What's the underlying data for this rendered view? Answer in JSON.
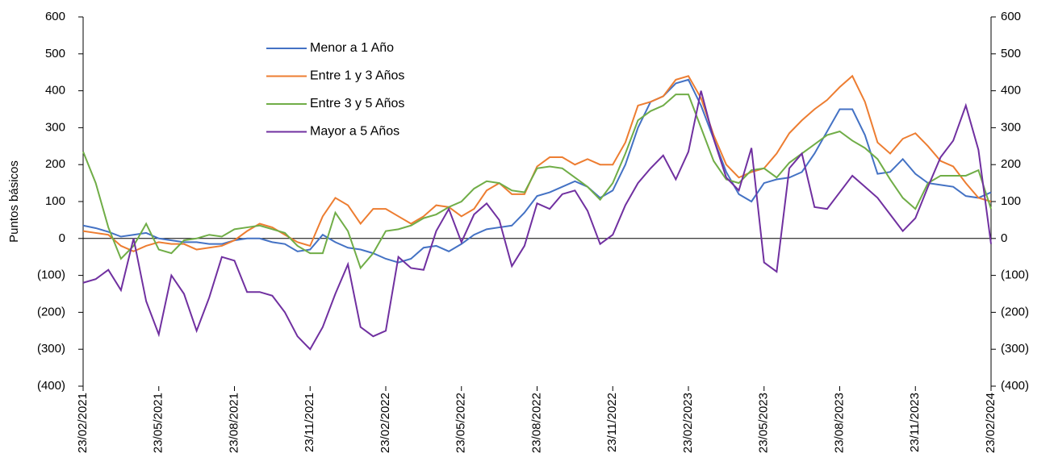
{
  "chart_data": {
    "type": "line",
    "y_label": "Puntos básicos",
    "categories": [
      "23/02/2021",
      null,
      null,
      null,
      null,
      null,
      "23/05/2021",
      null,
      null,
      null,
      null,
      null,
      "23/08/2021",
      null,
      null,
      null,
      null,
      null,
      "23/11/2021",
      null,
      null,
      null,
      null,
      null,
      "23/02/2022",
      null,
      null,
      null,
      null,
      null,
      "23/05/2022",
      null,
      null,
      null,
      null,
      null,
      "23/08/2022",
      null,
      null,
      null,
      null,
      null,
      "23/11/2022",
      null,
      null,
      null,
      null,
      null,
      "23/02/2023",
      null,
      null,
      null,
      null,
      null,
      "23/05/2023",
      null,
      null,
      null,
      null,
      null,
      "23/08/2023",
      null,
      null,
      null,
      null,
      null,
      "23/11/2023",
      null,
      null,
      null,
      null,
      null,
      "23/02/2024"
    ],
    "series": [
      {
        "name": "Menor a 1 Año",
        "color": "#4472c4",
        "values": [
          35,
          28,
          18,
          5,
          10,
          15,
          0,
          -5,
          -10,
          -10,
          -15,
          -15,
          -5,
          0,
          0,
          -10,
          -15,
          -35,
          -30,
          10,
          -10,
          -25,
          -30,
          -40,
          -55,
          -65,
          -55,
          -25,
          -20,
          -35,
          -15,
          10,
          25,
          30,
          35,
          70,
          115,
          125,
          140,
          155,
          140,
          110,
          130,
          200,
          300,
          370,
          385,
          420,
          430,
          360,
          270,
          180,
          120,
          100,
          150,
          160,
          165,
          180,
          230,
          290,
          350,
          350,
          280,
          175,
          180,
          215,
          175,
          150,
          145,
          140,
          115,
          110,
          125
        ]
      },
      {
        "name": "Entre 1 y 3 Años",
        "color": "#ed7d31",
        "values": [
          20,
          15,
          10,
          -20,
          -35,
          -20,
          -10,
          -15,
          -15,
          -30,
          -25,
          -20,
          -5,
          20,
          40,
          30,
          10,
          -10,
          -20,
          60,
          110,
          90,
          40,
          80,
          80,
          60,
          40,
          60,
          90,
          85,
          60,
          80,
          130,
          150,
          120,
          120,
          195,
          220,
          220,
          200,
          215,
          200,
          200,
          260,
          360,
          370,
          385,
          430,
          440,
          380,
          280,
          200,
          165,
          180,
          190,
          230,
          285,
          320,
          350,
          375,
          410,
          440,
          370,
          260,
          230,
          270,
          285,
          250,
          210,
          195,
          150,
          110,
          100
        ]
      },
      {
        "name": "Entre 3 y 5 Años",
        "color": "#70ad47",
        "values": [
          235,
          150,
          30,
          -55,
          -20,
          40,
          -30,
          -40,
          -5,
          0,
          10,
          5,
          25,
          30,
          35,
          25,
          15,
          -20,
          -40,
          -40,
          70,
          20,
          -80,
          -40,
          20,
          25,
          35,
          55,
          65,
          85,
          100,
          135,
          155,
          150,
          130,
          125,
          190,
          195,
          190,
          165,
          140,
          105,
          150,
          230,
          320,
          345,
          360,
          390,
          390,
          300,
          210,
          160,
          150,
          185,
          190,
          165,
          205,
          230,
          255,
          280,
          290,
          265,
          245,
          215,
          160,
          110,
          80,
          150,
          170,
          170,
          170,
          185,
          80
        ]
      },
      {
        "name": "Mayor a 5 Años",
        "color": "#7030a0",
        "values": [
          -120,
          -110,
          -85,
          -140,
          0,
          -170,
          -260,
          -100,
          -150,
          -250,
          -160,
          -50,
          -60,
          -145,
          -145,
          -155,
          -200,
          -265,
          -300,
          -240,
          -150,
          -70,
          -240,
          -265,
          -250,
          -50,
          -80,
          -85,
          20,
          80,
          -10,
          65,
          95,
          50,
          -75,
          -20,
          95,
          80,
          120,
          130,
          75,
          -15,
          10,
          90,
          150,
          190,
          225,
          160,
          235,
          400,
          270,
          165,
          130,
          245,
          -65,
          -90,
          190,
          230,
          85,
          80,
          125,
          170,
          140,
          110,
          65,
          20,
          55,
          140,
          220,
          265,
          360,
          240,
          -15
        ]
      }
    ],
    "ylim": [
      -400,
      600
    ],
    "yticks": [
      {
        "value": -400,
        "label": "(400)"
      },
      {
        "value": -300,
        "label": "(300)"
      },
      {
        "value": -200,
        "label": "(200)"
      },
      {
        "value": -100,
        "label": "(100)"
      },
      0,
      100,
      200,
      300,
      400,
      500,
      600
    ],
    "y2lim": [
      -400,
      600
    ],
    "y2ticks": [
      {
        "value": -400,
        "label": "(400)"
      },
      {
        "value": -300,
        "label": "(300)"
      },
      {
        "value": -200,
        "label": "(200)"
      },
      {
        "value": -100,
        "label": "(100)"
      },
      0,
      100,
      200,
      300,
      400,
      500,
      600
    ],
    "grid": false,
    "legend": "top-left"
  }
}
